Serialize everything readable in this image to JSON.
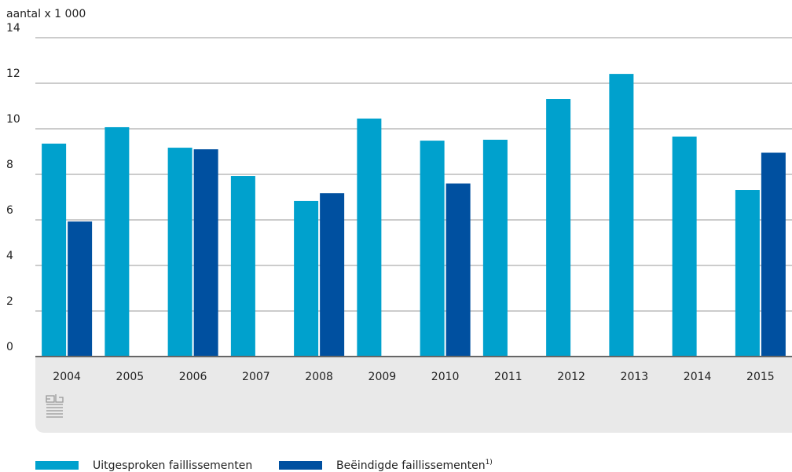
{
  "chart_data": {
    "type": "bar",
    "y_label": "aantal x 1 000",
    "categories": [
      "2004",
      "2005",
      "2006",
      "2007",
      "2008",
      "2009",
      "2010",
      "2011",
      "2012",
      "2013",
      "2014",
      "2015"
    ],
    "series": [
      {
        "name": "Uitgesproken faillissementen",
        "color": "#00a1cd",
        "values": [
          9.35,
          10.07,
          9.17,
          7.93,
          6.83,
          10.45,
          9.48,
          9.52,
          11.31,
          12.41,
          9.66,
          7.31
        ]
      },
      {
        "name": "Beëindigde faillissementen",
        "note": "1)",
        "color": "#0050a0",
        "values": [
          5.93,
          null,
          9.1,
          null,
          7.17,
          null,
          7.6,
          null,
          null,
          null,
          null,
          8.95
        ]
      }
    ],
    "ylim": [
      0,
      14
    ],
    "yticks": [
      0,
      2,
      4,
      6,
      8,
      10,
      12,
      14
    ],
    "grid": true
  }
}
